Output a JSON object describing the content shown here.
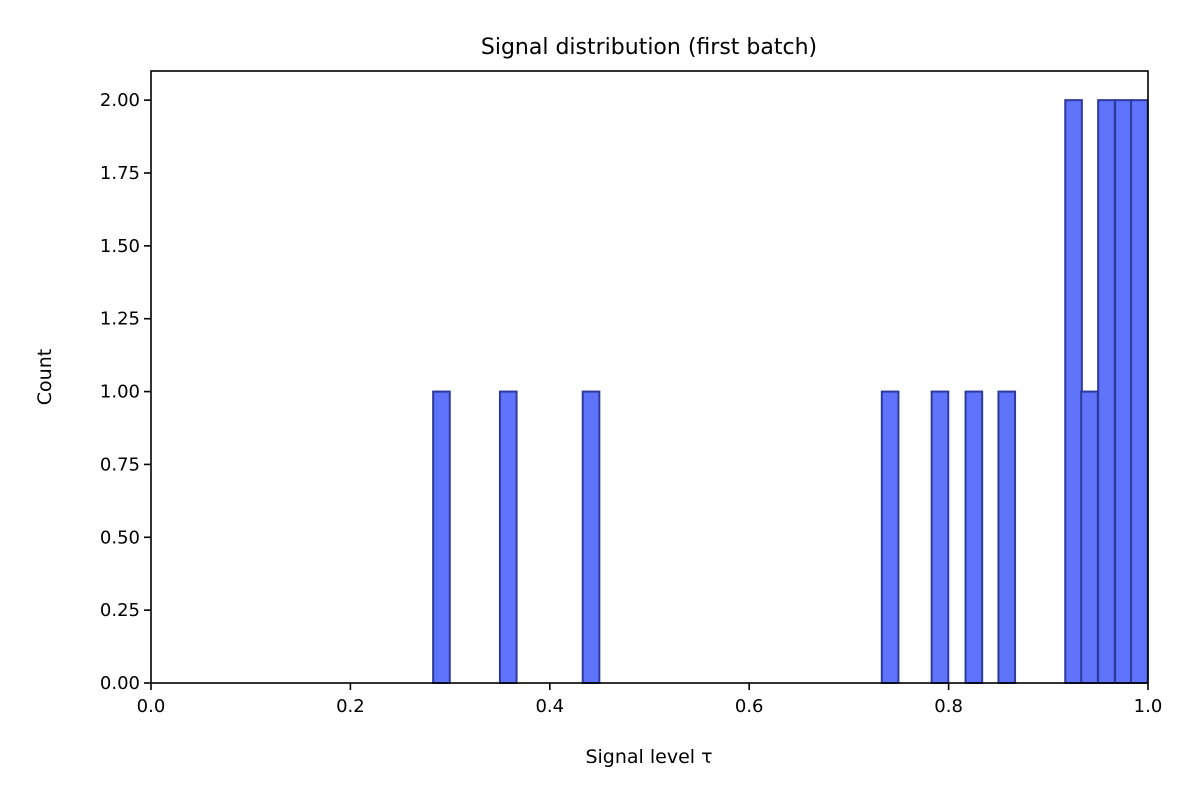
{
  "chart_data": {
    "type": "bar",
    "title": "Signal distribution (first batch)",
    "xlabel": "Signal level τ",
    "ylabel": "Count",
    "xlim": [
      0.0,
      1.0
    ],
    "ylim": [
      0.0,
      2.1
    ],
    "x_ticks": [
      "0.0",
      "0.2",
      "0.4",
      "0.6",
      "0.8",
      "1.0"
    ],
    "y_ticks": [
      "0.00",
      "0.25",
      "0.50",
      "0.75",
      "1.00",
      "1.25",
      "1.50",
      "1.75",
      "2.00"
    ],
    "bin_width": 0.01667,
    "bins": [
      {
        "x": 0.283,
        "count": 1
      },
      {
        "x": 0.35,
        "count": 1
      },
      {
        "x": 0.433,
        "count": 1
      },
      {
        "x": 0.733,
        "count": 1
      },
      {
        "x": 0.783,
        "count": 1
      },
      {
        "x": 0.817,
        "count": 1
      },
      {
        "x": 0.85,
        "count": 1
      },
      {
        "x": 0.917,
        "count": 2
      },
      {
        "x": 0.933,
        "count": 1
      },
      {
        "x": 0.95,
        "count": 2
      },
      {
        "x": 0.967,
        "count": 2
      },
      {
        "x": 0.983,
        "count": 2
      }
    ],
    "grid": false,
    "legend": "none",
    "bar_fill": "#5f73fb",
    "bar_edge": "#2f3a9e"
  }
}
